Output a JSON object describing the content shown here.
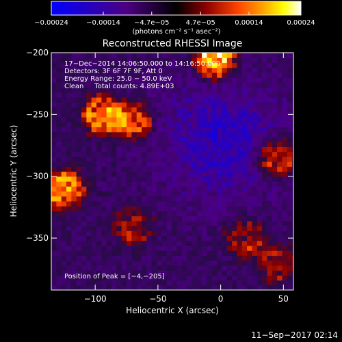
{
  "chart_data": {
    "type": "heatmap",
    "title": "Reconstructed RHESSI Image",
    "xlabel": "Heliocentric X (arcsec)",
    "ylabel": "Heliocentric Y (arcsec)",
    "xlim": [
      -135,
      58
    ],
    "ylim": [
      -392,
      -200
    ],
    "x_ticks": [
      "−100",
      "−50",
      "0",
      "50"
    ],
    "x_tick_values": [
      -100,
      -50,
      0,
      50
    ],
    "y_ticks": [
      "−200",
      "−250",
      "−300",
      "−350"
    ],
    "y_tick_values": [
      -200,
      -250,
      -300,
      -350
    ],
    "colorbar": {
      "range": [
        -0.00024,
        0.00024
      ],
      "tick_labels": [
        "−0.00024",
        "−0.00014",
        "−4.7e−05",
        "4.7e−05",
        "0.00014",
        "0.00024"
      ],
      "tick_values": [
        -0.00024,
        -0.00014,
        -4.7e-05,
        4.7e-05,
        0.00014,
        0.00024
      ],
      "unit_label": "(photons cm⁻² s⁻¹ asec⁻²)",
      "colors": [
        "#0000ff",
        "#4b0082",
        "#000000",
        "#8b0000",
        "#ff4500",
        "#ffa500",
        "#ffff00",
        "#ffffff"
      ]
    },
    "annotations": [
      "17−Dec−2014 14:06:50.000 to 14:16:50.000",
      "Detectors: 3F 6F 7F 9F, Att 0",
      "Energy Range: 25.0 − 50.0 keV",
      "Clean     Total counts: 4.89E+03"
    ],
    "peak_text": "Position of Peak = [−4,−205]",
    "peak_position": [
      -4,
      -205
    ],
    "sources": [
      {
        "x": -4,
        "y": -205,
        "intensity": 0.00024
      },
      {
        "x": -95,
        "y": -250,
        "intensity": 0.00018
      },
      {
        "x": -70,
        "y": -255,
        "intensity": 0.00016
      },
      {
        "x": -125,
        "y": -310,
        "intensity": 0.00019
      },
      {
        "x": 45,
        "y": -285,
        "intensity": 0.00017
      },
      {
        "x": -70,
        "y": -340,
        "intensity": 0.0001
      },
      {
        "x": 20,
        "y": -350,
        "intensity": 0.00011
      },
      {
        "x": 45,
        "y": -370,
        "intensity": 0.0001
      }
    ],
    "grid": false
  },
  "footer": {
    "timestamp": "11−Sep−2017 02:14"
  }
}
